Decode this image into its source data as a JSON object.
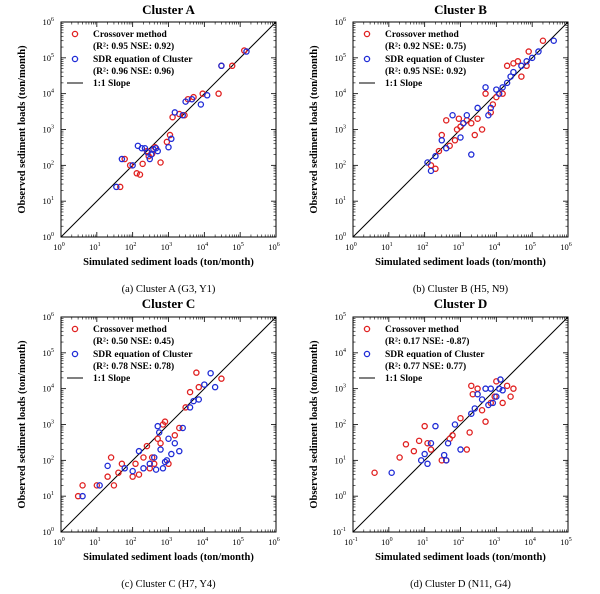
{
  "chart_data": [
    {
      "type": "scatter",
      "title": "Cluster A",
      "caption": "(a)  Cluster  A  (G3,  Y1)",
      "xlabel": "Simulated sediment loads (ton/month)",
      "ylabel": "Observed sediment loads (ton/month)",
      "log_scale": true,
      "xlim": [
        1,
        1000000
      ],
      "ylim": [
        1,
        1000000
      ],
      "tick_exponents": [
        0,
        1,
        2,
        3,
        4,
        5,
        6
      ],
      "grid": false,
      "legend_position": "top-left",
      "legend": [
        {
          "label": "Crossover method",
          "stats": "(R²: 0.95 NSE: 0.92)",
          "marker": "circle",
          "color": "#e02020"
        },
        {
          "label": "SDR equation of Cluster",
          "stats": "(R²: 0.96 NSE: 0.96)",
          "marker": "circle",
          "color": "#1f2bd6"
        },
        {
          "label": "1:1 Slope",
          "marker": "line",
          "color": "#000000"
        }
      ],
      "series": [
        {
          "name": "Crossover method",
          "color": "#e02020",
          "points": [
            [
              45,
              25
            ],
            [
              60,
              150
            ],
            [
              85,
              100
            ],
            [
              130,
              60
            ],
            [
              160,
              55
            ],
            [
              190,
              110
            ],
            [
              250,
              250
            ],
            [
              280,
              180
            ],
            [
              350,
              210
            ],
            [
              420,
              320
            ],
            [
              600,
              120
            ],
            [
              900,
              450
            ],
            [
              1100,
              700
            ],
            [
              1300,
              2200
            ],
            [
              2000,
              2700
            ],
            [
              2800,
              2500
            ],
            [
              3500,
              7000
            ],
            [
              5000,
              8000
            ],
            [
              9000,
              10000
            ],
            [
              25000,
              10000
            ],
            [
              30000,
              60000
            ],
            [
              60000,
              60000
            ],
            [
              130000,
              160000
            ]
          ]
        },
        {
          "name": "SDR equation of Cluster",
          "color": "#1f2bd6",
          "points": [
            [
              35,
              25
            ],
            [
              50,
              150
            ],
            [
              100,
              100
            ],
            [
              140,
              350
            ],
            [
              180,
              300
            ],
            [
              220,
              300
            ],
            [
              260,
              230
            ],
            [
              300,
              150
            ],
            [
              330,
              200
            ],
            [
              380,
              280
            ],
            [
              450,
              300
            ],
            [
              500,
              250
            ],
            [
              1000,
              320
            ],
            [
              1200,
              550
            ],
            [
              1500,
              3000
            ],
            [
              2500,
              2500
            ],
            [
              3000,
              6000
            ],
            [
              4500,
              7000
            ],
            [
              8000,
              5000
            ],
            [
              12000,
              9000
            ],
            [
              30000,
              60000
            ],
            [
              150000,
              150000
            ]
          ]
        }
      ]
    },
    {
      "type": "scatter",
      "title": "Cluster B",
      "caption": "(b)  Cluster  B  (H5,  N9)",
      "xlabel": "Simulated sediment loads (ton/month)",
      "ylabel": "Observed sediment loads (ton/month)",
      "log_scale": true,
      "xlim": [
        1,
        1000000
      ],
      "ylim": [
        1,
        1000000
      ],
      "tick_exponents": [
        0,
        1,
        2,
        3,
        4,
        5,
        6
      ],
      "grid": false,
      "legend_position": "top-left",
      "legend": [
        {
          "label": "Crossover method",
          "stats": "(R²: 0.92 NSE: 0.75)",
          "marker": "circle",
          "color": "#e02020"
        },
        {
          "label": "SDR equation of Cluster",
          "stats": "(R²: 0.95 NSE: 0.92)",
          "marker": "circle",
          "color": "#1f2bd6"
        },
        {
          "label": "1:1 Slope",
          "marker": "line",
          "color": "#000000"
        }
      ],
      "series": [
        {
          "name": "Crossover method",
          "color": "#e02020",
          "points": [
            [
              150,
              100
            ],
            [
              200,
              80
            ],
            [
              250,
              250
            ],
            [
              300,
              700
            ],
            [
              400,
              1800
            ],
            [
              500,
              350
            ],
            [
              700,
              500
            ],
            [
              800,
              1000
            ],
            [
              900,
              2000
            ],
            [
              1000,
              1200
            ],
            [
              1500,
              1800
            ],
            [
              2000,
              1500
            ],
            [
              2500,
              700
            ],
            [
              3000,
              2000
            ],
            [
              4000,
              1000
            ],
            [
              5000,
              10000
            ],
            [
              7000,
              3000
            ],
            [
              8000,
              5000
            ],
            [
              10000,
              8000
            ],
            [
              15000,
              10000
            ],
            [
              20000,
              60000
            ],
            [
              30000,
              70000
            ],
            [
              40000,
              80000
            ],
            [
              50000,
              30000
            ],
            [
              70000,
              60000
            ],
            [
              80000,
              150000
            ],
            [
              200000,
              300000
            ]
          ]
        },
        {
          "name": "SDR equation of Cluster",
          "color": "#1f2bd6",
          "points": [
            [
              120,
              120
            ],
            [
              150,
              70
            ],
            [
              200,
              180
            ],
            [
              300,
              500
            ],
            [
              400,
              300
            ],
            [
              600,
              2500
            ],
            [
              1000,
              600
            ],
            [
              1200,
              1500
            ],
            [
              1500,
              2500
            ],
            [
              2000,
              200
            ],
            [
              3000,
              4000
            ],
            [
              5000,
              15000
            ],
            [
              6000,
              2500
            ],
            [
              7000,
              4000
            ],
            [
              10000,
              13000
            ],
            [
              12000,
              10000
            ],
            [
              15000,
              15000
            ],
            [
              20000,
              20000
            ],
            [
              25000,
              30000
            ],
            [
              30000,
              40000
            ],
            [
              50000,
              60000
            ],
            [
              70000,
              80000
            ],
            [
              100000,
              100000
            ],
            [
              150000,
              150000
            ],
            [
              400000,
              300000
            ]
          ]
        }
      ]
    },
    {
      "type": "scatter",
      "title": "Cluster C",
      "caption": "(c)  Cluster  C  (H7,  Y4)",
      "xlabel": "Simulated sediment loads (ton/month)",
      "ylabel": "Observed sediment loads (ton/month)",
      "log_scale": true,
      "xlim": [
        1,
        1000000
      ],
      "ylim": [
        1,
        1000000
      ],
      "tick_exponents": [
        0,
        1,
        2,
        3,
        4,
        5,
        6
      ],
      "grid": false,
      "legend_position": "top-left",
      "legend": [
        {
          "label": "Crossover method",
          "stats": "(R²: 0.50 NSE: 0.45)",
          "marker": "circle",
          "color": "#e02020"
        },
        {
          "label": "SDR equation of Cluster",
          "stats": "(R²: 0.78 NSE: 0.78)",
          "marker": "circle",
          "color": "#1f2bd6"
        },
        {
          "label": "1:1 Slope",
          "marker": "line",
          "color": "#000000"
        }
      ],
      "series": [
        {
          "name": "Crossover method",
          "color": "#e02020",
          "points": [
            [
              3,
              10
            ],
            [
              4,
              20
            ],
            [
              10,
              20
            ],
            [
              20,
              35
            ],
            [
              25,
              120
            ],
            [
              30,
              20
            ],
            [
              40,
              45
            ],
            [
              50,
              80
            ],
            [
              100,
              35
            ],
            [
              120,
              80
            ],
            [
              150,
              40
            ],
            [
              200,
              120
            ],
            [
              250,
              250
            ],
            [
              300,
              60
            ],
            [
              350,
              120
            ],
            [
              400,
              80
            ],
            [
              500,
              400
            ],
            [
              600,
              300
            ],
            [
              700,
              1000
            ],
            [
              800,
              1200
            ],
            [
              1000,
              80
            ],
            [
              1500,
              500
            ],
            [
              2000,
              800
            ],
            [
              3000,
              3000
            ],
            [
              4000,
              8000
            ],
            [
              6000,
              28000
            ],
            [
              7000,
              11000
            ],
            [
              30000,
              19000
            ]
          ]
        },
        {
          "name": "SDR equation of Cluster",
          "color": "#1f2bd6",
          "points": [
            [
              4,
              10
            ],
            [
              12,
              20
            ],
            [
              20,
              70
            ],
            [
              60,
              60
            ],
            [
              100,
              50
            ],
            [
              150,
              180
            ],
            [
              200,
              60
            ],
            [
              300,
              80
            ],
            [
              400,
              120
            ],
            [
              450,
              55
            ],
            [
              500,
              900
            ],
            [
              550,
              600
            ],
            [
              600,
              200
            ],
            [
              700,
              60
            ],
            [
              800,
              90
            ],
            [
              900,
              100
            ],
            [
              1000,
              400
            ],
            [
              1200,
              150
            ],
            [
              1500,
              300
            ],
            [
              2000,
              180
            ],
            [
              2500,
              800
            ],
            [
              4000,
              3000
            ],
            [
              5000,
              4500
            ],
            [
              7000,
              5000
            ],
            [
              10000,
              13000
            ],
            [
              15000,
              27000
            ],
            [
              20000,
              11000
            ]
          ]
        }
      ]
    },
    {
      "type": "scatter",
      "title": "Cluster D",
      "caption": "(d)  Cluster  D  (N11,  G4)",
      "xlabel": "Simulated sediment loads (ton/month)",
      "ylabel": "Observed sediment loads (ton/month)",
      "log_scale": true,
      "xlim": [
        0.1,
        100000
      ],
      "ylim": [
        0.1,
        100000
      ],
      "tick_exponents": [
        -1,
        0,
        1,
        2,
        3,
        4,
        5
      ],
      "grid": false,
      "legend_position": "top-left",
      "legend": [
        {
          "label": "Crossover method",
          "stats": "(R²: 0.17 NSE: -0.87)",
          "marker": "circle",
          "color": "#e02020"
        },
        {
          "label": "SDR equation of Cluster",
          "stats": "(R²: 0.77 NSE: 0.77)",
          "marker": "circle",
          "color": "#1f2bd6"
        },
        {
          "label": "1:1 Slope",
          "marker": "line",
          "color": "#000000"
        }
      ],
      "series": [
        {
          "name": "Crossover method",
          "color": "#e02020",
          "points": [
            [
              0.4,
              4.5
            ],
            [
              2,
              12
            ],
            [
              3,
              28
            ],
            [
              5,
              18
            ],
            [
              7,
              35
            ],
            [
              10,
              90
            ],
            [
              12,
              30
            ],
            [
              15,
              20
            ],
            [
              30,
              10
            ],
            [
              40,
              10
            ],
            [
              50,
              40
            ],
            [
              60,
              50
            ],
            [
              100,
              150
            ],
            [
              150,
              20
            ],
            [
              180,
              60
            ],
            [
              200,
              1200
            ],
            [
              220,
              700
            ],
            [
              300,
              1000
            ],
            [
              400,
              250
            ],
            [
              500,
              120
            ],
            [
              700,
              400
            ],
            [
              900,
              600
            ],
            [
              1000,
              1600
            ],
            [
              1500,
              400
            ],
            [
              2000,
              1200
            ],
            [
              2500,
              600
            ],
            [
              3000,
              1000
            ]
          ]
        },
        {
          "name": "SDR equation of Cluster",
          "color": "#1f2bd6",
          "points": [
            [
              1.2,
              4.5
            ],
            [
              8,
              10
            ],
            [
              10,
              15
            ],
            [
              12,
              8
            ],
            [
              15,
              30
            ],
            [
              20,
              90
            ],
            [
              35,
              14
            ],
            [
              40,
              10
            ],
            [
              45,
              30
            ],
            [
              70,
              100
            ],
            [
              100,
              20
            ],
            [
              200,
              200
            ],
            [
              250,
              280
            ],
            [
              300,
              700
            ],
            [
              400,
              500
            ],
            [
              500,
              1000
            ],
            [
              600,
              350
            ],
            [
              700,
              1000
            ],
            [
              800,
              400
            ],
            [
              1000,
              600
            ],
            [
              1200,
              1000
            ],
            [
              1300,
              1800
            ],
            [
              1500,
              900
            ]
          ]
        }
      ]
    }
  ]
}
